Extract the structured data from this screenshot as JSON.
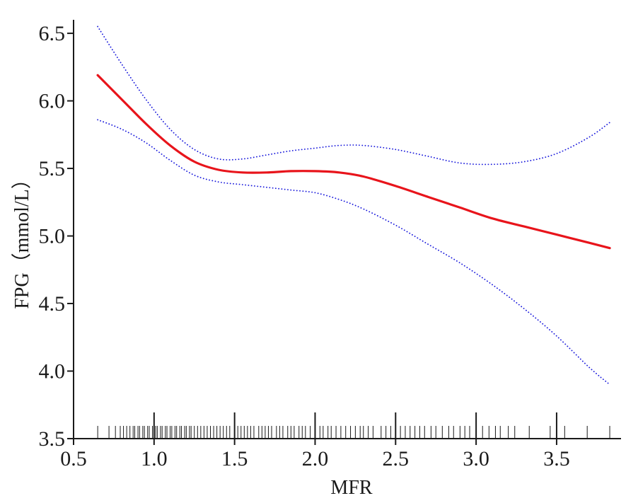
{
  "chart_data": {
    "type": "line",
    "title": "",
    "xlabel": "MFR",
    "ylabel": "FPG（mmol/L）",
    "xlim": [
      0.5,
      3.9
    ],
    "ylim": [
      3.5,
      6.6
    ],
    "x_ticks": [
      "0.5",
      "1.0",
      "1.5",
      "2.0",
      "2.5",
      "3.0",
      "3.5"
    ],
    "y_ticks": [
      "3.5",
      "4.0",
      "4.5",
      "5.0",
      "5.5",
      "6.0",
      "6.5"
    ],
    "grid": false,
    "colors": {
      "fit": "#e8141b",
      "ci": "#1a1adc",
      "axis": "#1a1a1a"
    },
    "series": [
      {
        "style": "solid-red",
        "x": [
          0.65,
          0.8,
          0.95,
          1.1,
          1.25,
          1.4,
          1.55,
          1.7,
          1.85,
          2.0,
          2.15,
          2.3,
          2.5,
          2.7,
          2.9,
          3.1,
          3.3,
          3.5,
          3.7,
          3.83
        ],
        "y": [
          6.19,
          6.01,
          5.83,
          5.67,
          5.55,
          5.49,
          5.47,
          5.47,
          5.48,
          5.48,
          5.47,
          5.44,
          5.37,
          5.29,
          5.21,
          5.13,
          5.07,
          5.01,
          4.95,
          4.91
        ]
      },
      {
        "style": "dotted-blue-upper",
        "x": [
          0.65,
          0.8,
          0.95,
          1.1,
          1.25,
          1.4,
          1.55,
          1.7,
          1.85,
          2.0,
          2.15,
          2.3,
          2.5,
          2.7,
          2.9,
          3.1,
          3.3,
          3.5,
          3.7,
          3.83
        ],
        "y": [
          6.55,
          6.27,
          6.01,
          5.79,
          5.64,
          5.57,
          5.57,
          5.6,
          5.63,
          5.65,
          5.67,
          5.67,
          5.64,
          5.59,
          5.54,
          5.53,
          5.55,
          5.61,
          5.73,
          5.84
        ]
      },
      {
        "style": "dotted-blue-lower",
        "x": [
          0.65,
          0.8,
          0.95,
          1.1,
          1.25,
          1.4,
          1.55,
          1.7,
          1.85,
          2.0,
          2.15,
          2.3,
          2.5,
          2.7,
          2.9,
          3.1,
          3.3,
          3.5,
          3.7,
          3.83
        ],
        "y": [
          5.86,
          5.79,
          5.69,
          5.56,
          5.45,
          5.4,
          5.38,
          5.36,
          5.34,
          5.32,
          5.27,
          5.2,
          5.08,
          4.94,
          4.8,
          4.64,
          4.46,
          4.26,
          4.03,
          3.9
        ]
      }
    ],
    "rug": {
      "tall": [
        1.0,
        1.5,
        2.0,
        2.5,
        3.0,
        3.5
      ],
      "short": [
        0.65,
        0.72,
        0.76,
        0.79,
        0.81,
        0.83,
        0.85,
        0.87,
        0.88,
        0.9,
        0.91,
        0.93,
        0.94,
        0.96,
        0.97,
        0.99,
        1.01,
        1.02,
        1.04,
        1.05,
        1.07,
        1.08,
        1.1,
        1.11,
        1.13,
        1.14,
        1.16,
        1.17,
        1.19,
        1.2,
        1.22,
        1.23,
        1.25,
        1.27,
        1.29,
        1.31,
        1.33,
        1.35,
        1.37,
        1.39,
        1.41,
        1.43,
        1.45,
        1.47,
        1.52,
        1.54,
        1.56,
        1.58,
        1.6,
        1.62,
        1.65,
        1.67,
        1.69,
        1.71,
        1.73,
        1.76,
        1.78,
        1.8,
        1.83,
        1.85,
        1.87,
        1.9,
        1.92,
        1.94,
        1.97,
        2.03,
        2.05,
        2.08,
        2.1,
        2.13,
        2.16,
        2.19,
        2.22,
        2.25,
        2.28,
        2.3,
        2.33,
        2.36,
        2.41,
        2.44,
        2.47,
        2.53,
        2.56,
        2.59,
        2.62,
        2.65,
        2.68,
        2.72,
        2.75,
        2.79,
        2.83,
        2.86,
        2.9,
        2.93,
        2.96,
        3.04,
        3.08,
        3.12,
        3.15,
        3.2,
        3.24,
        3.33,
        3.46,
        3.55,
        3.69,
        3.83
      ]
    }
  }
}
